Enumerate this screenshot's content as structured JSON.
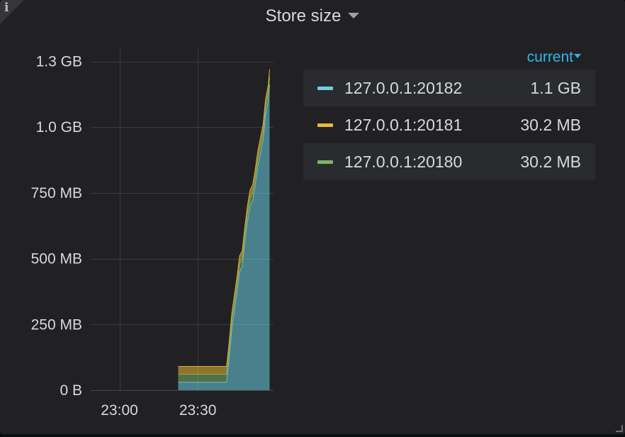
{
  "panel": {
    "title": "Store size",
    "info_icon": "info-icon"
  },
  "legend": {
    "header": "current",
    "items": [
      {
        "name": "127.0.0.1:20182",
        "value": "1.1 GB",
        "color": "#6ed0e0"
      },
      {
        "name": "127.0.0.1:20181",
        "value": "30.2 MB",
        "color": "#eab839"
      },
      {
        "name": "127.0.0.1:20180",
        "value": "30.2 MB",
        "color": "#7eb26d"
      }
    ]
  },
  "chart_data": {
    "type": "area",
    "stacked": true,
    "title": "Store size",
    "y_unit": "MB",
    "ylim": [
      0,
      1300
    ],
    "y_ticks": [
      {
        "value": 0,
        "label": "0 B"
      },
      {
        "value": 250,
        "label": "250 MB"
      },
      {
        "value": 500,
        "label": "500 MB"
      },
      {
        "value": 750,
        "label": "750 MB"
      },
      {
        "value": 1000,
        "label": "1.0 GB"
      },
      {
        "value": 1250,
        "label": "1.3 GB"
      }
    ],
    "x_unit": "minutes since 23:00",
    "xlim": [
      -11,
      59
    ],
    "x_ticks": [
      {
        "value": 0,
        "label": "23:00"
      },
      {
        "value": 30,
        "label": "23:30"
      }
    ],
    "x": [
      22.5,
      40.8,
      41.0,
      42,
      43,
      44,
      45,
      46,
      47,
      48,
      49,
      50,
      51,
      52,
      53,
      54,
      55,
      56,
      57,
      57.5
    ],
    "series": [
      {
        "name": "127.0.0.1:20182",
        "color": "#6ed0e0",
        "values": [
          30,
          30,
          30,
          120,
          230,
          300,
          370,
          450,
          470,
          560,
          640,
          700,
          720,
          780,
          850,
          900,
          950,
          1050,
          1100,
          1160
        ]
      },
      {
        "name": "127.0.0.1:20181",
        "color": "#eab839",
        "values": [
          30.2,
          30.2,
          30.2,
          30.2,
          30.2,
          30.2,
          30.2,
          30.2,
          30.2,
          30.2,
          30.2,
          30.2,
          30.2,
          30.2,
          30.2,
          30.2,
          30.2,
          30.2,
          30.2,
          30.2
        ]
      },
      {
        "name": "127.0.0.1:20180",
        "color": "#7eb26d",
        "values": [
          30.2,
          30.2,
          30.2,
          30.2,
          30.2,
          30.2,
          30.2,
          30.2,
          30.2,
          30.2,
          30.2,
          30.2,
          30.2,
          30.2,
          30.2,
          30.2,
          30.2,
          30.2,
          30.2,
          30.2
        ]
      }
    ]
  }
}
